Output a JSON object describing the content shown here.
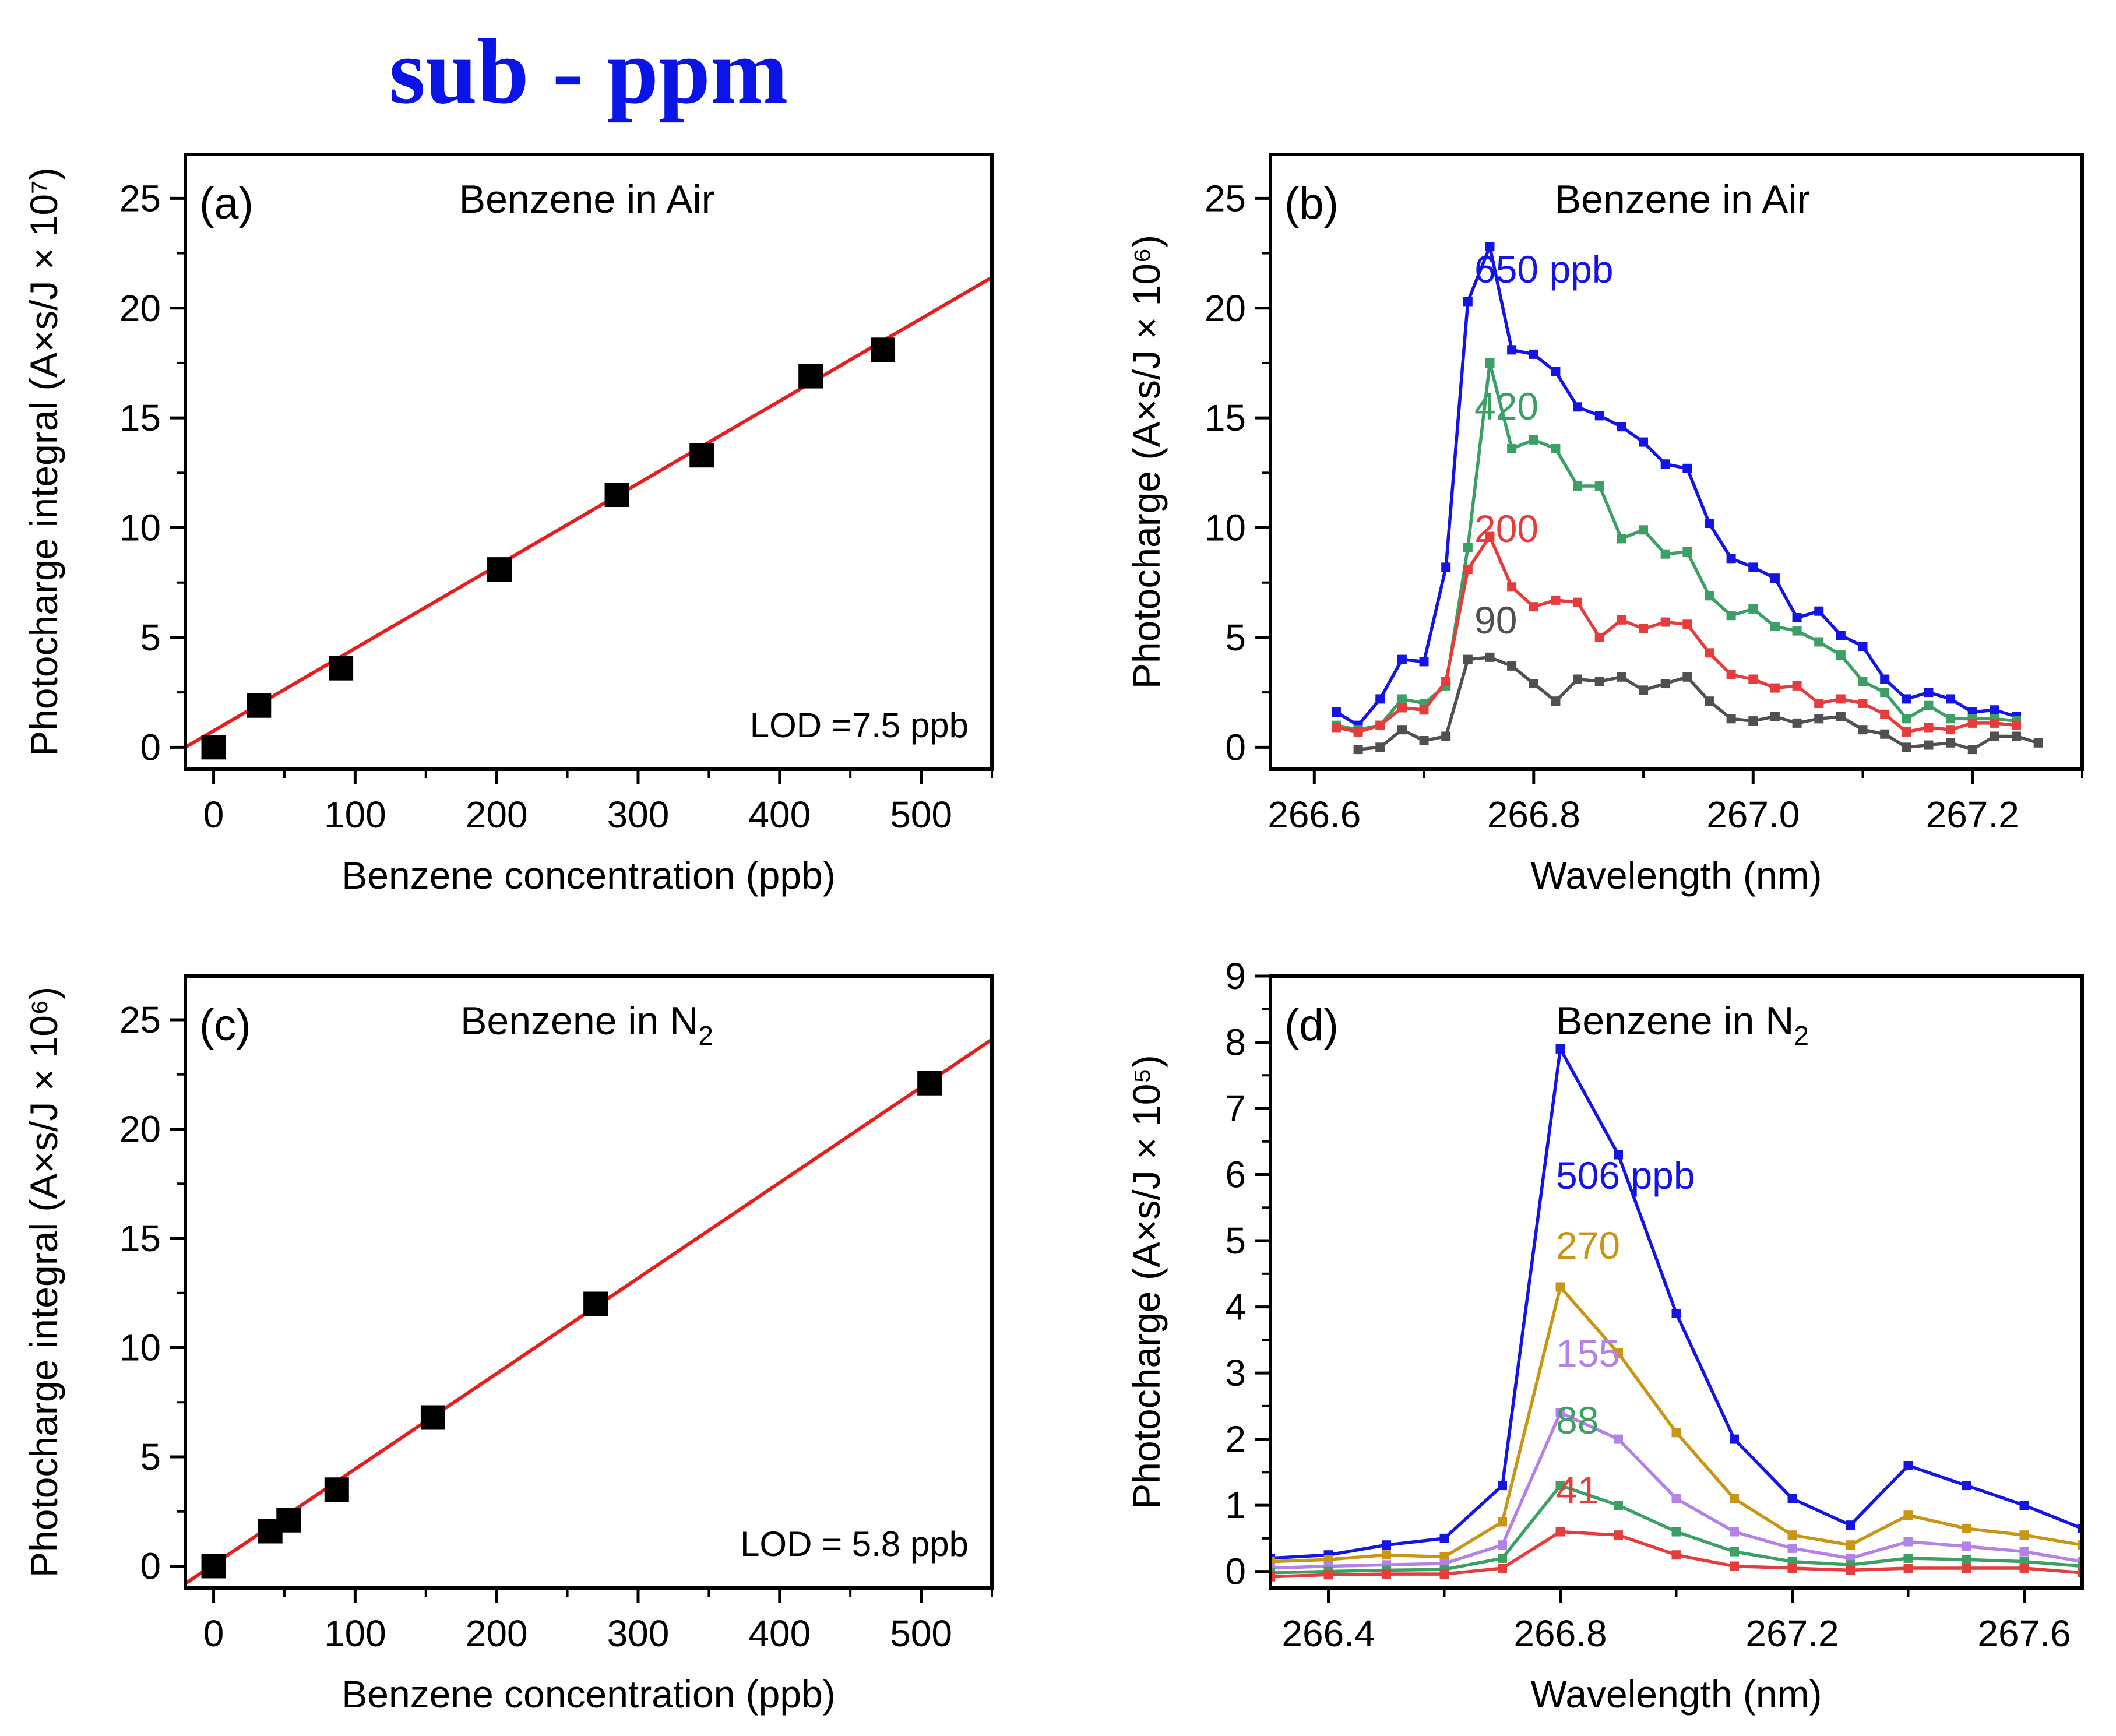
{
  "figure_title": "sub - ppm",
  "colors": {
    "fit_line": "#e61e1e",
    "marker": "#000000",
    "blue": "#1414e6",
    "green": "#3ca064",
    "red": "#e63c3c",
    "gray": "#505050",
    "gold": "#c89614",
    "purple": "#b482e6"
  },
  "chart_data": [
    {
      "id": "a",
      "type": "scatter",
      "panel_label": "(a)",
      "title": "Benzene in Air",
      "annotation": "LOD =7.5 ppb",
      "xlabel": "Benzene concentration (ppb)",
      "ylabel": "Photocharge integral (A×s/J × 10⁷)",
      "xlim": [
        -20,
        550
      ],
      "ylim": [
        -1,
        27
      ],
      "xticks": [
        0,
        100,
        200,
        300,
        400,
        500
      ],
      "yticks": [
        0,
        5,
        10,
        15,
        20,
        25
      ],
      "xminor": 50,
      "yminor": 2.5,
      "grid": false,
      "points": {
        "x": [
          0,
          32,
          90,
          202,
          285,
          345,
          422,
          473
        ],
        "y": [
          0,
          1.9,
          3.6,
          8.1,
          11.5,
          13.3,
          16.9,
          18.1
        ]
      },
      "fit": {
        "x": [
          -20,
          550
        ],
        "y": [
          0.0,
          21.4
        ]
      }
    },
    {
      "id": "b",
      "type": "line",
      "panel_label": "(b)",
      "title": "Benzene in Air",
      "xlabel": "Wavelength (nm)",
      "ylabel": "Photocharge (A×s/J × 10⁶)",
      "xlim": [
        266.56,
        267.3
      ],
      "ylim": [
        -1,
        27
      ],
      "xticks": [
        266.6,
        266.8,
        267.0,
        267.2
      ],
      "xticklabels": [
        "266.6",
        "266.8",
        "267.0",
        "267.2"
      ],
      "yticks": [
        0,
        5,
        10,
        15,
        20,
        25
      ],
      "xminor": 0.1,
      "yminor": 2.5,
      "grid": false,
      "series": [
        {
          "label": "650 ppb",
          "color_key": "blue",
          "x": [
            266.62,
            266.64,
            266.66,
            266.68,
            266.7,
            266.72,
            266.74,
            266.76,
            266.78,
            266.8,
            266.82,
            266.84,
            266.86,
            266.88,
            266.9,
            266.92,
            266.94,
            266.96,
            266.98,
            267.0,
            267.02,
            267.04,
            267.06,
            267.08,
            267.1,
            267.12,
            267.14,
            267.16,
            267.18,
            267.2,
            267.22,
            267.24
          ],
          "y": [
            1.6,
            1.0,
            2.2,
            4.0,
            3.9,
            8.2,
            20.3,
            22.8,
            18.1,
            17.9,
            17.1,
            15.5,
            15.1,
            14.6,
            13.9,
            12.9,
            12.7,
            10.2,
            8.6,
            8.2,
            7.7,
            5.9,
            6.2,
            5.1,
            4.6,
            3.1,
            2.2,
            2.5,
            2.2,
            1.6,
            1.7,
            1.4
          ]
        },
        {
          "label": "420",
          "color_key": "green",
          "x": [
            266.62,
            266.64,
            266.66,
            266.68,
            266.7,
            266.72,
            266.74,
            266.76,
            266.78,
            266.8,
            266.82,
            266.84,
            266.86,
            266.88,
            266.9,
            266.92,
            266.94,
            266.96,
            266.98,
            267.0,
            267.02,
            267.04,
            267.06,
            267.08,
            267.1,
            267.12,
            267.14,
            267.16,
            267.18,
            267.2,
            267.22,
            267.24
          ],
          "y": [
            1.0,
            0.8,
            1.0,
            2.2,
            2.0,
            2.8,
            9.1,
            17.5,
            13.6,
            14.0,
            13.6,
            11.9,
            11.9,
            9.5,
            9.9,
            8.8,
            8.9,
            6.9,
            6.0,
            6.3,
            5.5,
            5.3,
            4.8,
            4.2,
            3.0,
            2.5,
            1.3,
            1.9,
            1.3,
            1.3,
            1.3,
            1.2
          ]
        },
        {
          "label": "200",
          "color_key": "red",
          "x": [
            266.62,
            266.64,
            266.66,
            266.68,
            266.7,
            266.72,
            266.74,
            266.76,
            266.78,
            266.8,
            266.82,
            266.84,
            266.86,
            266.88,
            266.9,
            266.92,
            266.94,
            266.96,
            266.98,
            267.0,
            267.02,
            267.04,
            267.06,
            267.08,
            267.1,
            267.12,
            267.14,
            267.16,
            267.18,
            267.2,
            267.22,
            267.24
          ],
          "y": [
            0.9,
            0.7,
            1.0,
            1.8,
            1.7,
            3.0,
            8.1,
            9.6,
            7.3,
            6.4,
            6.7,
            6.6,
            5.0,
            5.8,
            5.4,
            5.7,
            5.6,
            4.3,
            3.3,
            3.1,
            2.7,
            2.8,
            2.0,
            2.2,
            2.0,
            1.5,
            0.7,
            0.9,
            0.8,
            1.1,
            1.1,
            1.0
          ]
        },
        {
          "label": "90",
          "color_key": "gray",
          "x": [
            266.64,
            266.66,
            266.68,
            266.7,
            266.72,
            266.74,
            266.76,
            266.78,
            266.8,
            266.82,
            266.84,
            266.86,
            266.88,
            266.9,
            266.92,
            266.94,
            266.96,
            266.98,
            267.0,
            267.02,
            267.04,
            267.06,
            267.08,
            267.1,
            267.12,
            267.14,
            267.16,
            267.18,
            267.2,
            267.22,
            267.24,
            267.26
          ],
          "y": [
            -0.1,
            0.0,
            0.8,
            0.3,
            0.5,
            4.0,
            4.1,
            3.7,
            2.9,
            2.1,
            3.1,
            3.0,
            3.2,
            2.6,
            2.9,
            3.2,
            2.1,
            1.3,
            1.2,
            1.4,
            1.1,
            1.3,
            1.4,
            0.8,
            0.6,
            0.0,
            0.1,
            0.2,
            -0.1,
            0.5,
            0.5,
            0.2
          ]
        }
      ]
    },
    {
      "id": "c",
      "type": "scatter",
      "panel_label": "(c)",
      "title": "Benzene in N",
      "title_sub": "2",
      "annotation": "LOD = 5.8 ppb",
      "xlabel": "Benzene concentration (ppb)",
      "ylabel": "Photocharge integral (A×s/J × 10⁶)",
      "xlim": [
        -20,
        550
      ],
      "ylim": [
        -1,
        27
      ],
      "xticks": [
        0,
        100,
        200,
        300,
        400,
        500
      ],
      "yticks": [
        0,
        5,
        10,
        15,
        20,
        25
      ],
      "xminor": 50,
      "yminor": 2.5,
      "grid": false,
      "points": {
        "x": [
          0,
          40,
          53,
          87,
          155,
          270,
          506
        ],
        "y": [
          0,
          1.6,
          2.1,
          3.5,
          6.8,
          12.0,
          22.1
        ]
      },
      "fit": {
        "x": [
          -20,
          550
        ],
        "y": [
          -0.8,
          24.1
        ]
      }
    },
    {
      "id": "d",
      "type": "line",
      "panel_label": "(d)",
      "title": "Benzene in N",
      "title_sub": "2",
      "xlabel": "Wavelength (nm)",
      "ylabel": "Photocharge (A×s/J × 10⁵)",
      "xlim": [
        266.3,
        267.7
      ],
      "ylim": [
        -0.25,
        9
      ],
      "xticks": [
        266.4,
        266.8,
        267.2,
        267.6
      ],
      "xticklabels": [
        "266.4",
        "266.8",
        "267.2",
        "267.6"
      ],
      "yticks": [
        0,
        1,
        2,
        3,
        4,
        5,
        6,
        7,
        8,
        9
      ],
      "xminor": 0.2,
      "yminor": 0.5,
      "grid": false,
      "series": [
        {
          "label": "506  ppb",
          "color_key": "blue",
          "x": [
            266.3,
            266.4,
            266.5,
            266.6,
            266.7,
            266.8,
            266.9,
            267.0,
            267.1,
            267.2,
            267.3,
            267.4,
            267.5,
            267.6,
            267.7
          ],
          "y": [
            0.2,
            0.25,
            0.4,
            0.5,
            1.3,
            7.9,
            6.3,
            3.9,
            2.0,
            1.1,
            0.7,
            1.6,
            1.3,
            1.0,
            0.65
          ]
        },
        {
          "label": "270",
          "color_key": "gold",
          "x": [
            266.3,
            266.4,
            266.5,
            266.6,
            266.7,
            266.8,
            266.9,
            267.0,
            267.1,
            267.2,
            267.3,
            267.4,
            267.5,
            267.6,
            267.7
          ],
          "y": [
            0.15,
            0.18,
            0.25,
            0.22,
            0.75,
            4.3,
            3.3,
            2.1,
            1.1,
            0.55,
            0.4,
            0.85,
            0.65,
            0.55,
            0.4
          ]
        },
        {
          "label": "155",
          "color_key": "purple",
          "x": [
            266.3,
            266.4,
            266.5,
            266.6,
            266.7,
            266.8,
            266.9,
            267.0,
            267.1,
            267.2,
            267.3,
            267.4,
            267.5,
            267.6,
            267.7
          ],
          "y": [
            0.05,
            0.08,
            0.1,
            0.12,
            0.4,
            2.4,
            2.0,
            1.1,
            0.6,
            0.35,
            0.2,
            0.45,
            0.38,
            0.3,
            0.15
          ]
        },
        {
          "label": "88",
          "color_key": "green",
          "x": [
            266.3,
            266.4,
            266.5,
            266.6,
            266.7,
            266.8,
            266.9,
            267.0,
            267.1,
            267.2,
            267.3,
            267.4,
            267.5,
            267.6,
            267.7
          ],
          "y": [
            -0.02,
            0.0,
            0.02,
            0.03,
            0.2,
            1.3,
            1.0,
            0.6,
            0.3,
            0.15,
            0.1,
            0.2,
            0.18,
            0.15,
            0.08
          ]
        },
        {
          "label": "41",
          "color_key": "red",
          "x": [
            266.3,
            266.4,
            266.5,
            266.6,
            266.7,
            266.8,
            266.9,
            267.0,
            267.1,
            267.2,
            267.3,
            267.4,
            267.5,
            267.6,
            267.7
          ],
          "y": [
            -0.08,
            -0.05,
            -0.04,
            -0.04,
            0.05,
            0.6,
            0.55,
            0.25,
            0.08,
            0.05,
            0.02,
            0.05,
            0.05,
            0.05,
            -0.02
          ]
        }
      ]
    }
  ]
}
